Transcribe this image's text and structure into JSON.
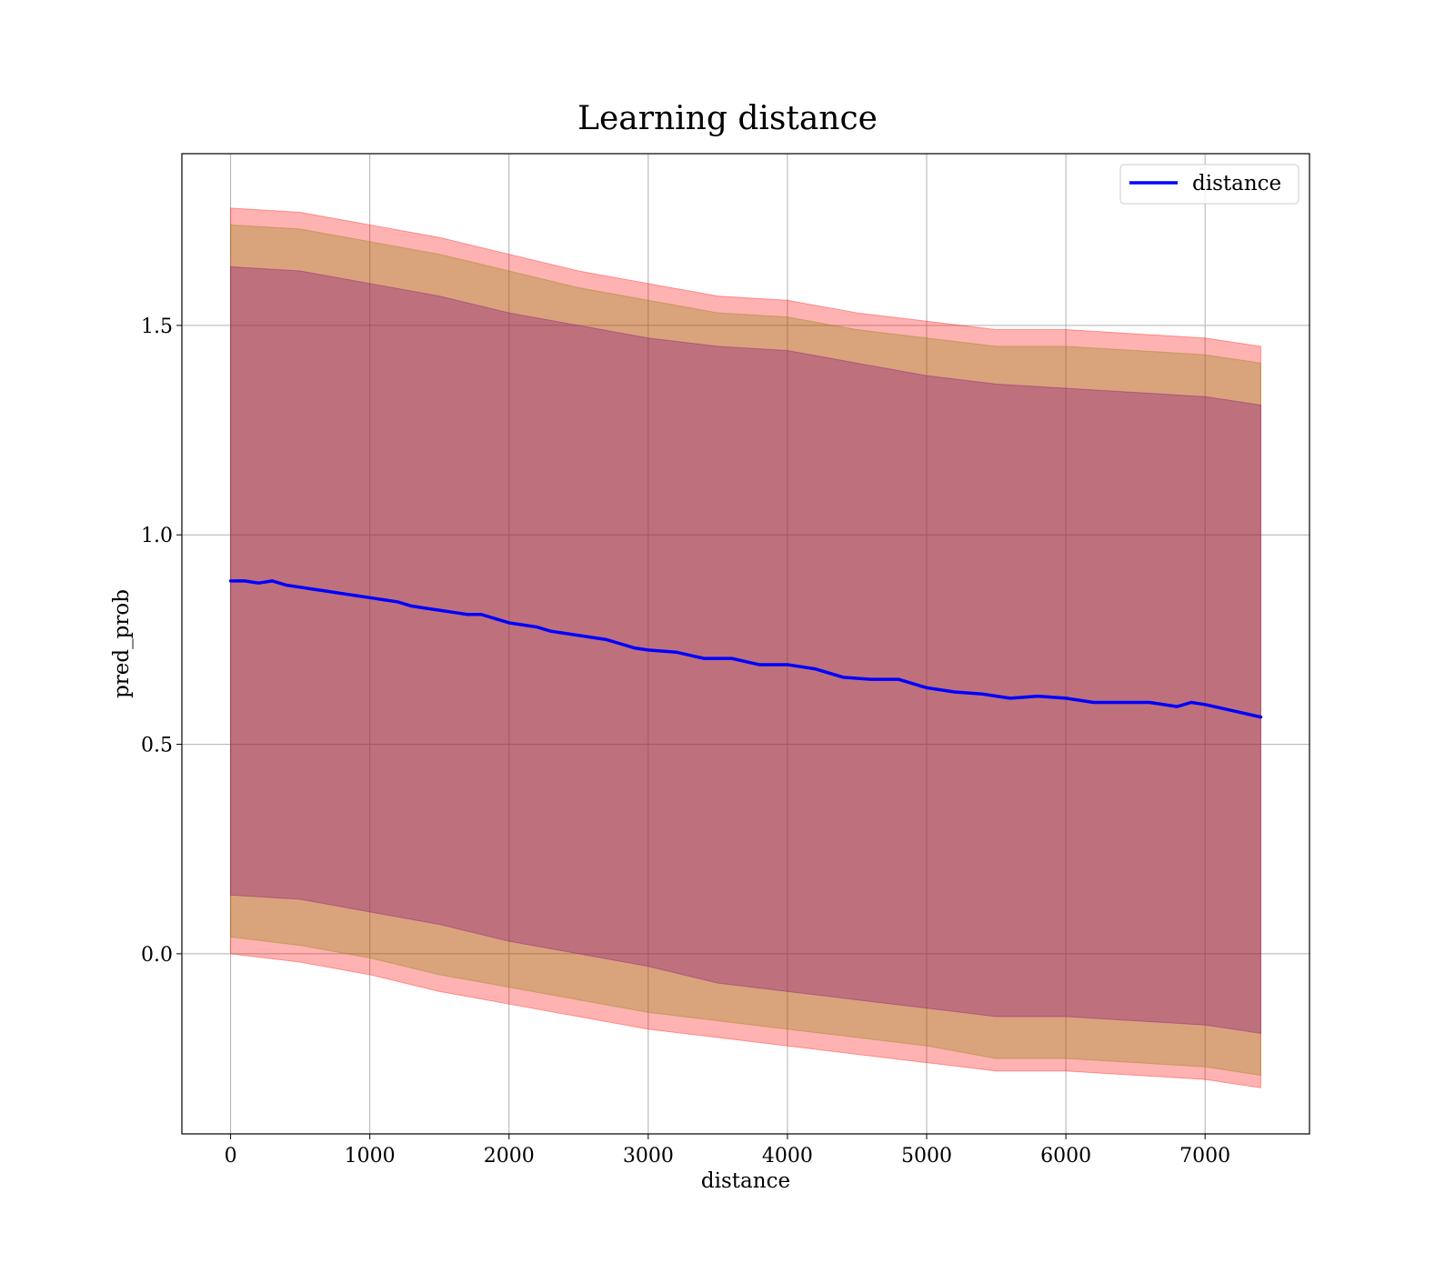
{
  "chart_data": {
    "type": "line",
    "title": "Learning distance",
    "xlabel": "distance",
    "ylabel": "pred_prob",
    "xlim": [
      -350,
      7750
    ],
    "ylim": [
      -0.43,
      1.91
    ],
    "xticks": [
      0,
      1000,
      2000,
      3000,
      4000,
      5000,
      6000,
      7000
    ],
    "xtick_labels": [
      "0",
      "1000",
      "2000",
      "3000",
      "4000",
      "5000",
      "6000",
      "7000"
    ],
    "yticks": [
      0.0,
      0.5,
      1.0,
      1.5
    ],
    "ytick_labels": [
      "0.0",
      "0.5",
      "1.0",
      "1.5"
    ],
    "grid": true,
    "legend": {
      "position": "upper-right",
      "entries": [
        "distance"
      ]
    },
    "colors": {
      "line": "#0000ff",
      "band_outer": "#ff0000",
      "band_middle": "#808000",
      "band_inner": "#800080",
      "grid": "#b0b0b0"
    },
    "series": [
      {
        "name": "distance",
        "x": [
          0,
          100,
          200,
          300,
          400,
          500,
          600,
          700,
          800,
          900,
          1000,
          1100,
          1200,
          1300,
          1400,
          1500,
          1600,
          1700,
          1800,
          1900,
          2000,
          2100,
          2200,
          2300,
          2400,
          2500,
          2600,
          2700,
          2800,
          2900,
          3000,
          3200,
          3400,
          3600,
          3800,
          4000,
          4200,
          4400,
          4600,
          4800,
          5000,
          5200,
          5400,
          5600,
          5800,
          6000,
          6200,
          6400,
          6600,
          6800,
          6900,
          7000,
          7200,
          7400
        ],
        "y": [
          0.89,
          0.89,
          0.885,
          0.89,
          0.88,
          0.875,
          0.87,
          0.865,
          0.86,
          0.855,
          0.85,
          0.845,
          0.84,
          0.83,
          0.825,
          0.82,
          0.815,
          0.81,
          0.81,
          0.8,
          0.79,
          0.785,
          0.78,
          0.77,
          0.765,
          0.76,
          0.755,
          0.75,
          0.74,
          0.73,
          0.725,
          0.72,
          0.705,
          0.705,
          0.69,
          0.69,
          0.68,
          0.66,
          0.655,
          0.655,
          0.635,
          0.625,
          0.62,
          0.61,
          0.615,
          0.61,
          0.6,
          0.6,
          0.6,
          0.59,
          0.6,
          0.595,
          0.58,
          0.565
        ]
      }
    ],
    "bands": [
      {
        "name": "outer",
        "x": [
          0,
          500,
          1000,
          1500,
          2000,
          2500,
          3000,
          3500,
          4000,
          4500,
          5000,
          5500,
          6000,
          6500,
          7000,
          7400
        ],
        "lower": [
          0.0,
          -0.02,
          -0.05,
          -0.09,
          -0.12,
          -0.15,
          -0.18,
          -0.2,
          -0.22,
          -0.24,
          -0.26,
          -0.28,
          -0.28,
          -0.29,
          -0.3,
          -0.32
        ],
        "upper": [
          1.78,
          1.77,
          1.74,
          1.71,
          1.67,
          1.63,
          1.6,
          1.57,
          1.56,
          1.53,
          1.51,
          1.49,
          1.49,
          1.48,
          1.47,
          1.45
        ]
      },
      {
        "name": "middle",
        "x": [
          0,
          500,
          1000,
          1500,
          2000,
          2500,
          3000,
          3500,
          4000,
          4500,
          5000,
          5500,
          6000,
          6500,
          7000,
          7400
        ],
        "lower": [
          0.04,
          0.02,
          -0.01,
          -0.05,
          -0.08,
          -0.11,
          -0.14,
          -0.16,
          -0.18,
          -0.2,
          -0.22,
          -0.25,
          -0.25,
          -0.26,
          -0.27,
          -0.29
        ],
        "upper": [
          1.74,
          1.73,
          1.7,
          1.67,
          1.63,
          1.59,
          1.56,
          1.53,
          1.52,
          1.49,
          1.47,
          1.45,
          1.45,
          1.44,
          1.43,
          1.41
        ]
      },
      {
        "name": "inner",
        "x": [
          0,
          500,
          1000,
          1500,
          2000,
          2500,
          3000,
          3500,
          4000,
          4500,
          5000,
          5500,
          6000,
          6500,
          7000,
          7400
        ],
        "lower": [
          0.14,
          0.13,
          0.1,
          0.07,
          0.03,
          0.0,
          -0.03,
          -0.07,
          -0.09,
          -0.11,
          -0.13,
          -0.15,
          -0.15,
          -0.16,
          -0.17,
          -0.19
        ],
        "upper": [
          1.64,
          1.63,
          1.6,
          1.57,
          1.53,
          1.5,
          1.47,
          1.45,
          1.44,
          1.41,
          1.38,
          1.36,
          1.35,
          1.34,
          1.33,
          1.31
        ]
      }
    ]
  }
}
